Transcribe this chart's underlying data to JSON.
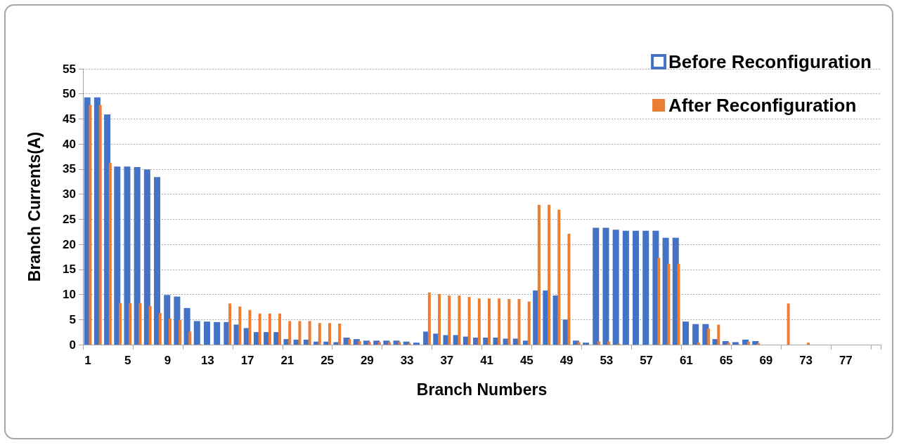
{
  "chart_data": {
    "type": "bar",
    "xlabel": "Branch Numbers",
    "ylabel": "Branch Currents(A)",
    "categories": [
      "1",
      null,
      null,
      null,
      "5",
      null,
      null,
      null,
      "9",
      null,
      null,
      null,
      "13",
      null,
      null,
      null,
      "17",
      null,
      null,
      null,
      "21",
      null,
      null,
      null,
      "25",
      null,
      null,
      null,
      "29",
      null,
      null,
      null,
      "33",
      null,
      null,
      null,
      "37",
      null,
      null,
      null,
      "41",
      null,
      null,
      null,
      "45",
      null,
      null,
      null,
      "49",
      null,
      null,
      null,
      "53",
      null,
      null,
      null,
      "57",
      null,
      null,
      null,
      "61",
      null,
      null,
      null,
      "65",
      null,
      null,
      null,
      "69",
      null,
      null,
      null,
      "73",
      null,
      null,
      null,
      "77",
      null,
      null,
      null
    ],
    "series": [
      {
        "name": "Before Reconfiguration",
        "color": "#4472c4",
        "values": [
          49.3,
          49.3,
          45.9,
          35.5,
          35.5,
          35.4,
          34.9,
          33.4,
          9.9,
          9.6,
          7.3,
          4.7,
          4.6,
          4.5,
          4.5,
          4.0,
          3.3,
          2.5,
          2.5,
          2.5,
          1.1,
          1.0,
          1.0,
          0.6,
          0.6,
          0.5,
          1.4,
          1.1,
          0.8,
          0.8,
          0.8,
          0.8,
          0.6,
          0.4,
          2.6,
          2.2,
          1.9,
          1.9,
          1.6,
          1.4,
          1.4,
          1.4,
          1.2,
          1.2,
          0.8,
          10.8,
          10.8,
          9.8,
          5.0,
          0.8,
          0.4,
          23.3,
          23.3,
          22.9,
          22.7,
          22.7,
          22.7,
          22.7,
          21.3,
          21.3,
          4.6,
          4.1,
          4.1,
          1.1,
          0.7,
          0.5,
          1.0,
          0.7,
          0,
          0,
          0,
          0,
          0,
          0,
          0,
          0,
          0,
          0,
          0,
          0
        ]
      },
      {
        "name": "After Reconfiguration",
        "color": "#ed7d31",
        "values": [
          47.8,
          47.8,
          36.2,
          8.3,
          8.3,
          8.3,
          7.7,
          6.3,
          5.2,
          4.9,
          2.6,
          0.1,
          0,
          0,
          8.2,
          7.6,
          6.9,
          6.2,
          6.2,
          6.2,
          4.7,
          4.7,
          4.7,
          4.3,
          4.3,
          4.2,
          1.1,
          0.7,
          0.5,
          0.5,
          0.5,
          0.5,
          0.3,
          0,
          10.4,
          10.1,
          9.8,
          9.8,
          9.5,
          9.2,
          9.2,
          9.2,
          9.1,
          9.1,
          8.6,
          27.9,
          27.9,
          26.9,
          22.1,
          0.5,
          0,
          0.6,
          0.6,
          0.2,
          0,
          0,
          0,
          17.3,
          16.1,
          16.1,
          0,
          0.4,
          3.2,
          4.0,
          0.4,
          0.1,
          0.6,
          0.3,
          0,
          0,
          8.2,
          0,
          0.4,
          0,
          0,
          0,
          0,
          0,
          0,
          0
        ]
      }
    ],
    "ylim": [
      0,
      55
    ],
    "yticks": [
      0,
      5,
      10,
      15,
      20,
      25,
      30,
      35,
      40,
      45,
      50,
      55
    ],
    "grid": "y",
    "legend": "top right"
  }
}
